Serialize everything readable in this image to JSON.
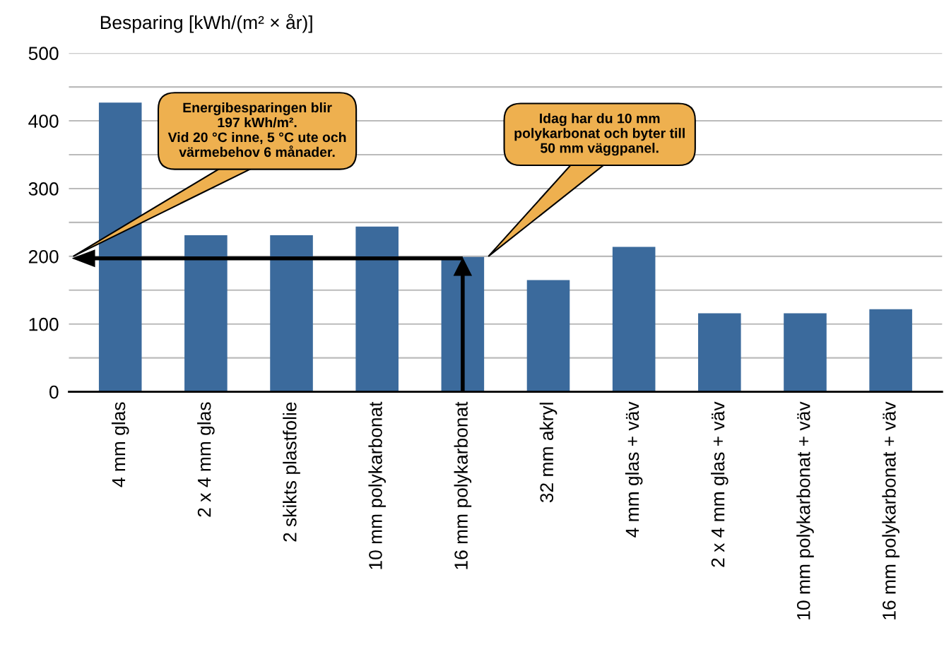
{
  "chart_data": {
    "type": "bar",
    "ylabel": "Besparing [kWh/(m² × år)]",
    "categories": [
      "4 mm glas",
      "2 x 4 mm glas",
      "2 skikts plastfolie",
      "10 mm polykarbonat",
      "16 mm polykarbonat",
      "32 mm akryl",
      "4 mm glas + väv",
      "2 x 4 mm glas + väv",
      "10 mm polykarbonat + väv",
      "16 mm polykarbonat + väv"
    ],
    "values": [
      427,
      231,
      231,
      244,
      199,
      165,
      214,
      116,
      116,
      122
    ],
    "color": "#3b6a9c",
    "ylim": [
      0,
      500
    ],
    "yticks": [
      0,
      {
        "value": 50,
        "label": null
      },
      100,
      {
        "value": 150,
        "label": null
      },
      200,
      {
        "value": 250,
        "label": null
      },
      300,
      {
        "value": 350,
        "label": null
      },
      400,
      {
        "value": 450,
        "label": null
      },
      500
    ],
    "grid": "y",
    "annotations": [
      "Energibesparingen blir\n197 kWh/m².\nVid 20 °C inne, 5 °C ute och\nvärmebehov 6 månader.",
      "Idag har du 10 mm\npolykarbonat och byter till\n50 mm väggpanel."
    ],
    "ref_lines": [
      {
        "axis": "y",
        "value": 197
      }
    ]
  }
}
